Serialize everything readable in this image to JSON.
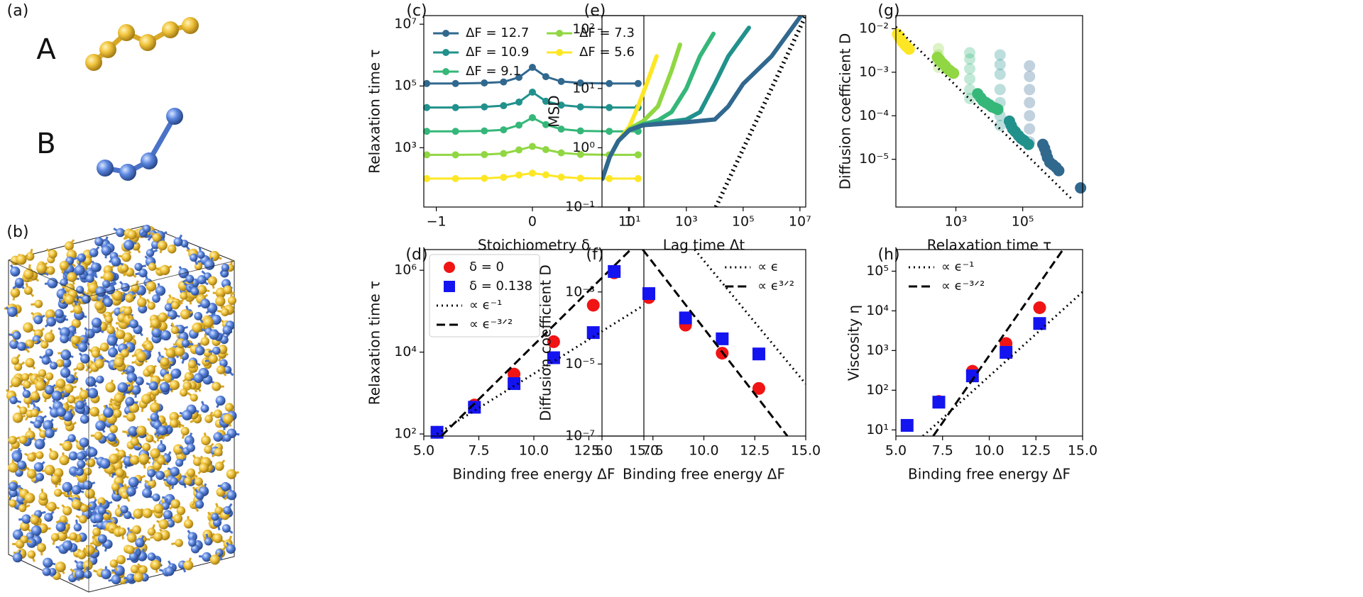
{
  "panel_labels": [
    "(a)",
    "(b)"
  ],
  "molecules": [
    "A",
    "B"
  ],
  "chart_data": [
    {
      "type": "line",
      "panel_label": "(c)",
      "xlabel": "Stoichiometry δ",
      "ylabel": "Relaxation time τ",
      "x": [
        -1.1,
        -0.8,
        -0.5,
        -0.3,
        -0.14,
        0,
        0.14,
        0.3,
        0.5,
        0.8,
        1.1
      ],
      "xlim": [
        -1.13,
        1.16
      ],
      "xticks": [
        {
          "value": -1,
          "label": "−1"
        },
        0,
        1
      ],
      "yscale": "log",
      "ylim": [
        12,
        19000000
      ],
      "yticks": [
        {
          "value": 1000,
          "label": "10³"
        },
        {
          "value": 100000,
          "label": "10⁵"
        },
        {
          "value": 10000000,
          "label": "10⁷"
        }
      ],
      "legend": "upper center",
      "legend_columns": 2,
      "series": [
        {
          "name": "ΔF = 12.7",
          "color": "#31688e",
          "line": "solid",
          "marker": "circle",
          "values": [
            120000,
            120000,
            125000,
            135000,
            190000,
            400000,
            200000,
            140000,
            125000,
            120000,
            120000
          ]
        },
        {
          "name": "ΔF = 10.9",
          "color": "#21918c",
          "line": "solid",
          "marker": "circle",
          "values": [
            20000,
            20000,
            21000,
            23000,
            30000,
            63000,
            32000,
            24000,
            21000,
            20000,
            20000
          ]
        },
        {
          "name": "ΔF = 9.1",
          "color": "#35b779",
          "line": "solid",
          "marker": "circle",
          "values": [
            3400,
            3400,
            3500,
            3800,
            5400,
            9400,
            5600,
            4000,
            3500,
            3400,
            3400
          ]
        },
        {
          "name": "ΔF = 7.3",
          "color": "#90d743",
          "line": "solid",
          "marker": "circle",
          "values": [
            590,
            590,
            600,
            650,
            850,
            1100,
            870,
            680,
            610,
            590,
            590
          ]
        },
        {
          "name": "ΔF = 5.6",
          "color": "#fde725",
          "line": "solid",
          "marker": "circle",
          "values": [
            100,
            100,
            102,
            110,
            130,
            150,
            132,
            112,
            103,
            100,
            100
          ]
        }
      ]
    },
    {
      "type": "scatter",
      "panel_label": "(d)",
      "xlabel": "Binding free energy ΔF",
      "ylabel": "Relaxation time τ",
      "xlim": [
        5,
        15
      ],
      "xticks": [
        {
          "value": 5,
          "label": "5.0"
        },
        7.5,
        {
          "value": 10,
          "label": "10.0"
        },
        12.5,
        {
          "value": 15,
          "label": "15.0"
        }
      ],
      "yscale": "log",
      "ylim": [
        89,
        3200000
      ],
      "yticks": [
        {
          "value": 100,
          "label": "10²"
        },
        {
          "value": 10000,
          "label": "10⁴"
        },
        {
          "value": 1000000,
          "label": "10⁶"
        }
      ],
      "legend": "upper left",
      "legend_frame": true,
      "series": [
        {
          "name": "δ = 0",
          "color": "#f01414",
          "line": "none",
          "marker": "circle",
          "x": [
            5.6,
            7.3,
            9.1,
            10.9,
            12.7
          ],
          "values": [
            110,
            510,
            2900,
            18000,
            140000
          ]
        },
        {
          "name": "δ = 0.138",
          "color": "#1414f0",
          "line": "none",
          "marker": "square",
          "x": [
            5.6,
            7.3,
            9.1,
            10.9,
            12.7
          ],
          "values": [
            110,
            450,
            1700,
            7300,
            30000
          ]
        },
        {
          "name": "∝ ϵ⁻¹",
          "color": "#000000",
          "line": "dotted",
          "marker": "none",
          "x": [
            5.6,
            15
          ],
          "values": [
            100,
            140000
          ]
        },
        {
          "name": "∝ ϵ⁻³ᐟ²",
          "color": "#000000",
          "line": "dashed",
          "marker": "none",
          "x": [
            5.8,
            14.4
          ],
          "values": [
            89,
            3200000
          ]
        }
      ]
    },
    {
      "type": "line",
      "panel_label": "(e)",
      "xlabel": "Lag time Δt",
      "ylabel": "MSD",
      "xscale": "log",
      "xlim": [
        1.07,
        16000000
      ],
      "xticks": [
        {
          "value": 10,
          "label": "10¹"
        },
        {
          "value": 1000,
          "label": "10³"
        },
        {
          "value": 100000,
          "label": "10⁵"
        },
        {
          "value": 10000000,
          "label": "10⁷"
        }
      ],
      "yscale": "log",
      "ylim": [
        0.1,
        170
      ],
      "yticks": [
        {
          "value": 0.1,
          "label": "10⁻¹"
        },
        {
          "value": 1,
          "label": "10⁰"
        },
        {
          "value": 10,
          "label": "10¹"
        },
        {
          "value": 100,
          "label": "10²"
        }
      ],
      "series": [
        {
          "color": "#fde725",
          "line": "solid",
          "marker": "none",
          "x": [
            1.1,
            2,
            4,
            10,
            20,
            40,
            90
          ],
          "values": [
            0.3,
            0.7,
            1.3,
            2.3,
            5,
            12,
            35
          ]
        },
        {
          "color": "#90d743",
          "line": "solid",
          "marker": "none",
          "x": [
            1.1,
            2,
            4,
            10,
            30,
            100,
            300,
            600
          ],
          "values": [
            0.3,
            0.7,
            1.3,
            2.1,
            2.8,
            5,
            20,
            55
          ]
        },
        {
          "color": "#35b779",
          "line": "solid",
          "marker": "none",
          "x": [
            1.1,
            2,
            4,
            10,
            30,
            100,
            300,
            1000,
            3000,
            9000
          ],
          "values": [
            0.3,
            0.7,
            1.3,
            2.0,
            2.5,
            2.9,
            4,
            10,
            35,
            84
          ]
        },
        {
          "color": "#21918c",
          "line": "solid",
          "marker": "none",
          "x": [
            1.1,
            2,
            4,
            10,
            30,
            100,
            1000,
            3000,
            10000,
            30000,
            160000
          ],
          "values": [
            0.3,
            0.7,
            1.3,
            2.0,
            2.4,
            2.6,
            3,
            4,
            12,
            35,
            106
          ]
        },
        {
          "color": "#31688e",
          "line": "solid",
          "marker": "none",
          "x": [
            1.1,
            2,
            4,
            10,
            30,
            100,
            1000,
            10000,
            30000,
            100000,
            1000000,
            11000000
          ],
          "values": [
            0.3,
            0.7,
            1.3,
            2.0,
            2.4,
            2.5,
            2.7,
            3,
            5,
            12,
            35,
            170
          ]
        },
        {
          "color": "#000000",
          "line": "dotted",
          "marker": "none",
          "x": [
            11000,
            16000000
          ],
          "values": [
            0.1,
            170
          ]
        }
      ]
    },
    {
      "type": "scatter",
      "panel_label": "(f)",
      "xlabel": "Binding free energy ΔF",
      "ylabel": "Diffusion coefficient D",
      "xlim": [
        5,
        15
      ],
      "xticks": [
        {
          "value": 5,
          "label": "5.0"
        },
        7.5,
        {
          "value": 10,
          "label": "10.0"
        },
        12.5,
        {
          "value": 15,
          "label": "15.0"
        }
      ],
      "yscale": "log",
      "ylim": [
        1e-07,
        0.015
      ],
      "yticks": [
        {
          "value": 1e-07,
          "label": "10⁻⁷"
        },
        {
          "value": 1e-05,
          "label": "10⁻⁵"
        },
        {
          "value": 0.001,
          "label": "10⁻³"
        }
      ],
      "legend": "upper right",
      "series": [
        {
          "color": "#f01414",
          "line": "none",
          "marker": "circle",
          "x": [
            5.6,
            7.3,
            9.1,
            10.9,
            12.7
          ],
          "values": [
            0.0034,
            0.0007,
            0.00012,
            2e-05,
            2.1e-06
          ]
        },
        {
          "color": "#1414f0",
          "line": "none",
          "marker": "square",
          "x": [
            5.6,
            7.3,
            9.1,
            10.9,
            12.7
          ],
          "values": [
            0.0037,
            0.0009,
            0.00019,
            5e-05,
            1.9e-05
          ]
        },
        {
          "name": "∝ ϵ",
          "color": "#000000",
          "line": "dotted",
          "marker": "none",
          "x": [
            9.55,
            15
          ],
          "values": [
            0.015,
            2.8e-06
          ]
        },
        {
          "name": "∝ ϵ³ᐟ²",
          "color": "#000000",
          "line": "dashed",
          "marker": "none",
          "x": [
            7.0,
            14.1
          ],
          "values": [
            0.015,
            1e-07
          ]
        }
      ]
    },
    {
      "type": "scatter",
      "panel_label": "(g)",
      "xlabel": "Relaxation time τ",
      "ylabel": "Diffusion coefficient D",
      "xscale": "log",
      "xlim": [
        16,
        6200000
      ],
      "xticks": [
        {
          "value": 1000,
          "label": "10³"
        },
        {
          "value": 100000,
          "label": "10⁵"
        }
      ],
      "yscale": "log",
      "ylim": [
        8e-07,
        0.02
      ],
      "yticks": [
        {
          "value": 1e-05,
          "label": "10⁻⁵"
        },
        {
          "value": 0.0001,
          "label": "10⁻⁴"
        },
        {
          "value": 0.001,
          "label": "10⁻³"
        },
        {
          "value": 0.01,
          "label": "10⁻²"
        }
      ],
      "series": [
        {
          "color": "#90d743",
          "alpha": 0.3,
          "line": "none",
          "marker": "circle",
          "x": [
            300,
            300,
            300,
            300
          ],
          "values": [
            0.0035,
            0.0025,
            0.0018,
            0.0013
          ]
        },
        {
          "color": "#35b779",
          "alpha": 0.3,
          "line": "none",
          "marker": "circle",
          "x": [
            2600,
            2600,
            2600,
            2600,
            2600,
            2600
          ],
          "values": [
            0.0028,
            0.002,
            0.0012,
            0.0007,
            0.0004,
            0.00025
          ]
        },
        {
          "color": "#21918c",
          "alpha": 0.3,
          "line": "none",
          "marker": "circle",
          "x": [
            21000,
            21000,
            21000,
            21000,
            21000,
            21000,
            21000
          ],
          "values": [
            0.0025,
            0.0015,
            0.0009,
            0.0004,
            0.0002,
            0.0001,
            6e-05
          ]
        },
        {
          "color": "#31688e",
          "alpha": 0.3,
          "line": "none",
          "marker": "circle",
          "x": [
            160000,
            160000,
            160000,
            160000,
            160000,
            160000,
            160000
          ],
          "values": [
            0.0014,
            0.0008,
            0.0004,
            0.0002,
            0.0001,
            5e-05,
            2.5e-05
          ]
        },
        {
          "color": "#fde725",
          "line": "none",
          "marker": "circle",
          "x": [
            18,
            20,
            22,
            25,
            28,
            32,
            36,
            40
          ],
          "values": [
            0.0075,
            0.0065,
            0.0058,
            0.005,
            0.0045,
            0.004,
            0.0037,
            0.0034
          ]
        },
        {
          "color": "#90d743",
          "line": "none",
          "marker": "circle",
          "x": [
            280,
            330,
            400,
            480,
            560,
            650,
            750,
            850
          ],
          "values": [
            0.0022,
            0.0019,
            0.0016,
            0.0014,
            0.0012,
            0.0011,
            0.001,
            0.00095
          ]
        },
        {
          "color": "#35b779",
          "line": "none",
          "marker": "circle",
          "x": [
            4500,
            5500,
            6500,
            8000,
            10000,
            12000,
            15000,
            18000
          ],
          "values": [
            0.00032,
            0.00026,
            0.00022,
            0.0002,
            0.00018,
            0.00016,
            0.00015,
            0.00014
          ]
        },
        {
          "color": "#21918c",
          "line": "none",
          "marker": "circle",
          "x": [
            40000,
            45000,
            50000,
            60000,
            75000,
            90000,
            110000,
            150000
          ],
          "values": [
            7.5e-05,
            6e-05,
            5e-05,
            4.3e-05,
            3.5e-05,
            3e-05,
            2.7e-05,
            2.2e-05
          ]
        },
        {
          "color": "#31688e",
          "line": "none",
          "marker": "circle",
          "x": [
            400000,
            450000,
            500000,
            550000,
            650000,
            800000,
            1000000,
            1200000,
            5400000
          ],
          "values": [
            2.2e-05,
            1.8e-05,
            1.4e-05,
            1.1e-05,
            8.5e-06,
            7.5e-06,
            6.5e-06,
            5.5e-06,
            2.2e-06
          ]
        },
        {
          "color": "#000000",
          "line": "dotted",
          "marker": "none",
          "x": [
            16,
            3000000
          ],
          "values": [
            0.011,
            1.2e-06
          ]
        }
      ]
    },
    {
      "type": "scatter",
      "panel_label": "(h)",
      "xlabel": "Binding free energy ΔF",
      "ylabel": "Viscosity η",
      "xlim": [
        5,
        15
      ],
      "xticks": [
        {
          "value": 5,
          "label": "5.0"
        },
        7.5,
        {
          "value": 10,
          "label": "10.0"
        },
        12.5,
        {
          "value": 15,
          "label": "15.0"
        }
      ],
      "yscale": "log",
      "ylim": [
        7,
        350000
      ],
      "yticks": [
        {
          "value": 10,
          "label": "10¹"
        },
        {
          "value": 100,
          "label": "10²"
        },
        {
          "value": 1000,
          "label": "10³"
        },
        {
          "value": 10000,
          "label": "10⁴"
        },
        {
          "value": 100000,
          "label": "10⁵"
        }
      ],
      "legend": "upper left",
      "series": [
        {
          "color": "#f01414",
          "line": "none",
          "marker": "circle",
          "x": [
            5.6,
            7.3,
            9.1,
            10.9,
            12.7
          ],
          "values": [
            null,
            52,
            300,
            1500,
            12000
          ]
        },
        {
          "color": "#1414f0",
          "line": "none",
          "marker": "square",
          "x": [
            5.6,
            7.3,
            9.1,
            10.9,
            12.7
          ],
          "values": [
            13,
            50,
            230,
            900,
            4800
          ]
        },
        {
          "name": "∝ ϵ⁻¹",
          "color": "#000000",
          "line": "dotted",
          "marker": "none",
          "x": [
            6.45,
            15
          ],
          "values": [
            7,
            30000
          ]
        },
        {
          "name": "∝ ϵ⁻³ᐟ²",
          "color": "#000000",
          "line": "dashed",
          "marker": "none",
          "x": [
            7.0,
            13.95
          ],
          "values": [
            7,
            350000
          ]
        }
      ]
    }
  ]
}
